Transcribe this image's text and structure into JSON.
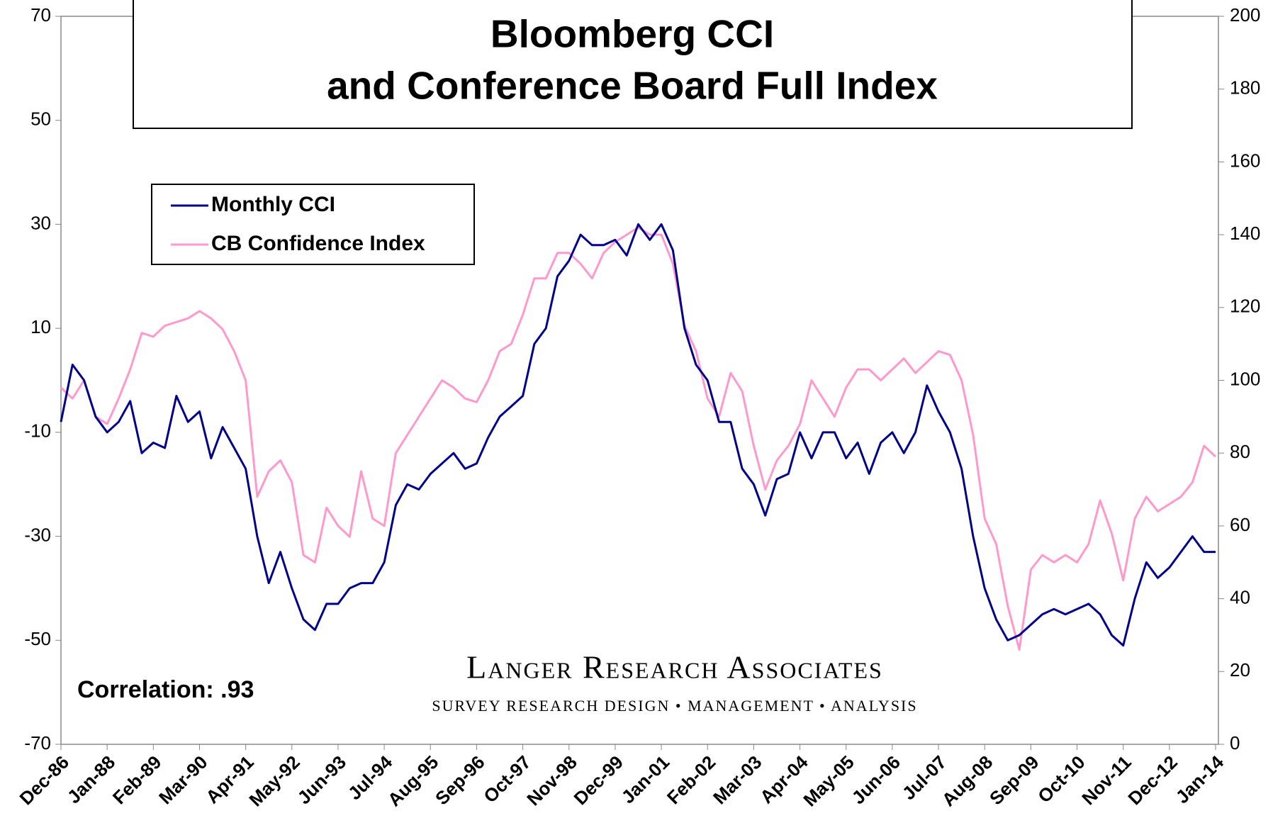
{
  "chart_data": {
    "type": "line",
    "title_lines": [
      "Bloomberg CCI",
      "and Conference Board Full Index"
    ],
    "annotations": [
      "Correlation: .93",
      "Langer Research Associates",
      "SURVEY RESEARCH DESIGN • MANAGEMENT • ANALYSIS"
    ],
    "categories": [
      "Dec-86",
      null,
      null,
      null,
      "Jan-88",
      null,
      null,
      null,
      "Feb-89",
      null,
      null,
      null,
      "Mar-90",
      null,
      null,
      null,
      "Apr-91",
      null,
      null,
      null,
      "May-92",
      null,
      null,
      null,
      "Jun-93",
      null,
      null,
      null,
      "Jul-94",
      null,
      null,
      null,
      "Aug-95",
      null,
      null,
      null,
      "Sep-96",
      null,
      null,
      null,
      "Oct-97",
      null,
      null,
      null,
      "Nov-98",
      null,
      null,
      null,
      "Dec-99",
      null,
      null,
      null,
      "Jan-01",
      null,
      null,
      null,
      "Feb-02",
      null,
      null,
      null,
      "Mar-03",
      null,
      null,
      null,
      "Apr-04",
      null,
      null,
      null,
      "May-05",
      null,
      null,
      null,
      "Jun-06",
      null,
      null,
      null,
      "Jul-07",
      null,
      null,
      null,
      "Aug-08",
      null,
      null,
      null,
      "Sep-09",
      null,
      null,
      null,
      "Oct-10",
      null,
      null,
      null,
      "Nov-11",
      null,
      null,
      null,
      "Dec-12",
      null,
      null,
      null,
      "Jan-14"
    ],
    "series": [
      {
        "name": "Monthly CCI",
        "color": "#00008b",
        "axis": "y",
        "values": [
          -8,
          3,
          0,
          -7,
          -10,
          -8,
          -4,
          -14,
          -12,
          -13,
          -3,
          -8,
          -6,
          -15,
          -9,
          -13,
          -17,
          -30,
          -39,
          -33,
          -40,
          -46,
          -48,
          -43,
          -43,
          -40,
          -39,
          -39,
          -35,
          -24,
          -20,
          -21,
          -18,
          -16,
          -14,
          -17,
          -16,
          -11,
          -7,
          -5,
          -3,
          7,
          10,
          20,
          23,
          28,
          26,
          26,
          27,
          24,
          30,
          27,
          30,
          25,
          10,
          3,
          0,
          -8,
          -8,
          -17,
          -20,
          -26,
          -19,
          -18,
          -10,
          -15,
          -10,
          -10,
          -15,
          -12,
          -18,
          -12,
          -10,
          -14,
          -10,
          -1,
          -6,
          -10,
          -17,
          -30,
          -40,
          -46,
          -50,
          -49,
          -47,
          -45,
          -44,
          -45,
          -44,
          -43,
          -45,
          -49,
          -51,
          -42,
          -35,
          -38,
          -36,
          -33,
          -30,
          -33,
          -33
        ]
      },
      {
        "name": "CB Confidence Index",
        "color": "#ff99cc",
        "axis": "y2",
        "values": [
          98,
          95,
          100,
          90,
          88,
          95,
          103,
          113,
          112,
          115,
          116,
          117,
          119,
          117,
          114,
          108,
          100,
          68,
          75,
          78,
          72,
          52,
          50,
          65,
          60,
          57,
          75,
          62,
          60,
          80,
          85,
          90,
          95,
          100,
          98,
          95,
          94,
          100,
          108,
          110,
          118,
          128,
          128,
          135,
          135,
          132,
          128,
          135,
          138,
          140,
          142,
          140,
          140,
          132,
          115,
          108,
          95,
          90,
          102,
          97,
          82,
          70,
          78,
          82,
          88,
          100,
          95,
          90,
          98,
          103,
          103,
          100,
          103,
          106,
          102,
          105,
          108,
          107,
          100,
          85,
          62,
          55,
          38,
          26,
          48,
          52,
          50,
          52,
          50,
          55,
          67,
          58,
          45,
          62,
          68,
          64,
          66,
          68,
          72,
          82,
          79
        ]
      }
    ],
    "ylim": [
      -70,
      70
    ],
    "yticks": [
      -70,
      -50,
      -30,
      -10,
      10,
      30,
      50,
      70
    ],
    "y2lim": [
      0,
      200
    ],
    "y2ticks": [
      0,
      20,
      40,
      60,
      80,
      100,
      120,
      140,
      160,
      180,
      200
    ],
    "grid": false,
    "legend": "upper left"
  }
}
